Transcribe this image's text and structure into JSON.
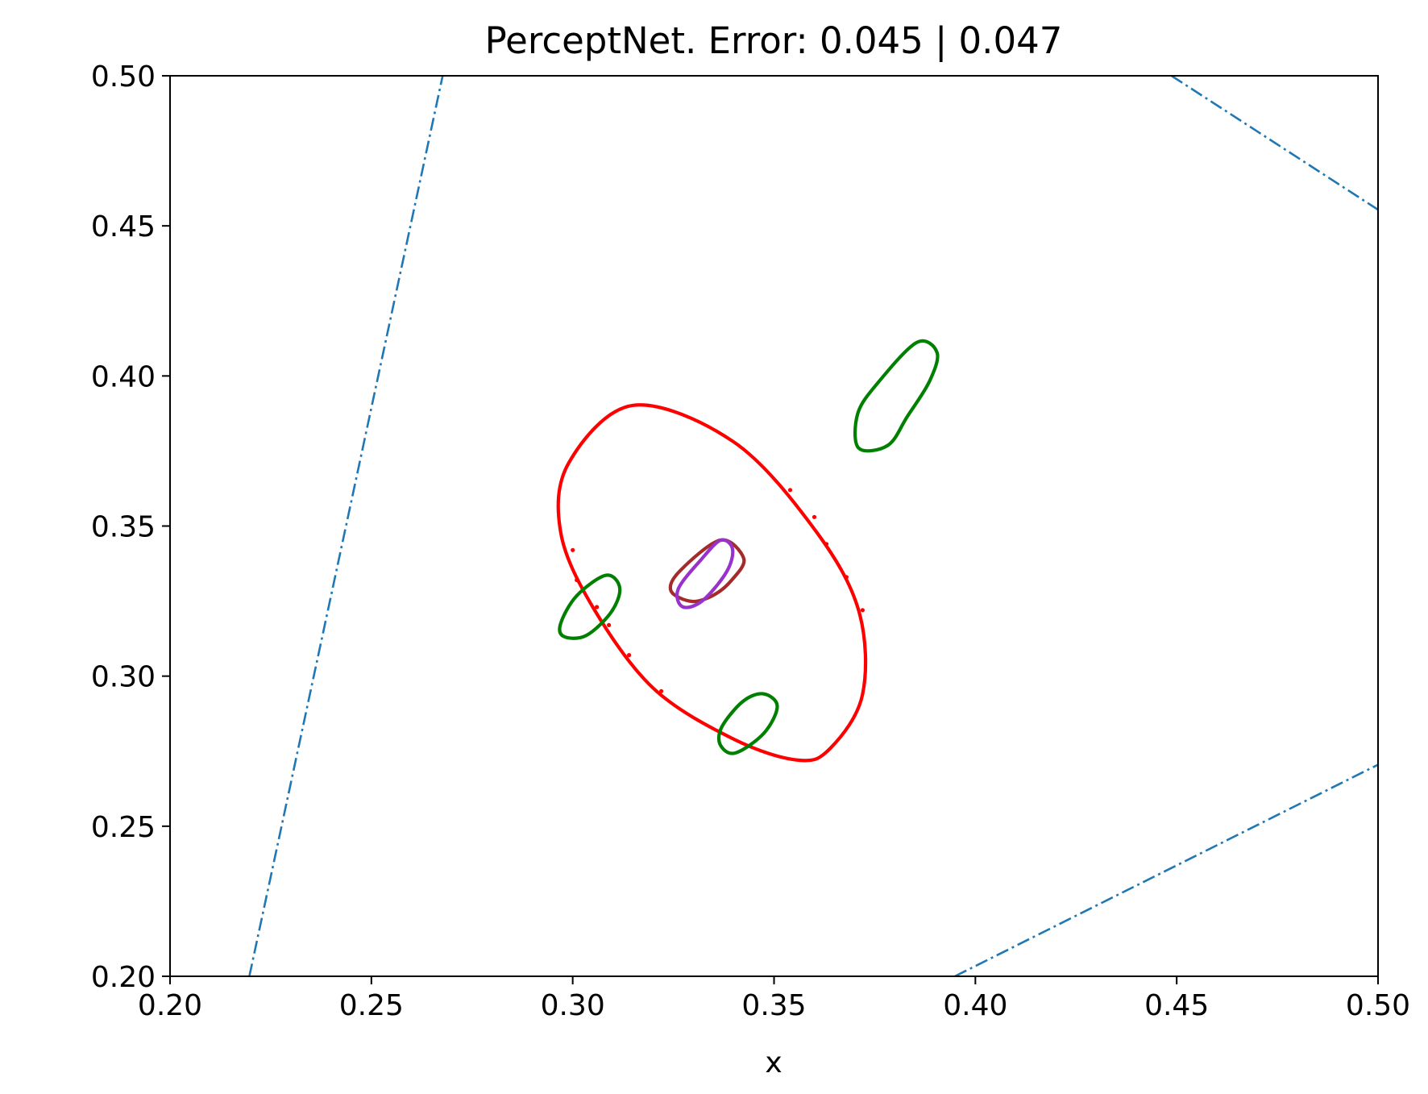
{
  "chart_data": {
    "type": "line",
    "title": "PerceptNet. Error: 0.045 | 0.047",
    "xlabel": "x",
    "ylabel": "",
    "xlim": [
      0.2,
      0.5
    ],
    "ylim": [
      0.2,
      0.5
    ],
    "xticks": [
      "0.20",
      "0.25",
      "0.30",
      "0.35",
      "0.40",
      "0.45",
      "0.50"
    ],
    "yticks": [
      "0.20",
      "0.25",
      "0.30",
      "0.35",
      "0.40",
      "0.45",
      "0.50"
    ],
    "grid": false,
    "legend": "none",
    "lines": [
      {
        "color": "#1f77b4",
        "style": "dashdot",
        "points": [
          [
            0.2197,
            0.2
          ],
          [
            0.2677,
            0.5
          ]
        ]
      },
      {
        "color": "#1f77b4",
        "style": "dashdot",
        "points": [
          [
            0.4487,
            0.5
          ],
          [
            0.5,
            0.4554
          ]
        ]
      },
      {
        "color": "#1f77b4",
        "style": "dashdot",
        "points": [
          [
            0.3949,
            0.2
          ],
          [
            0.5,
            0.2705
          ]
        ]
      }
    ],
    "ellipses": [
      {
        "color": "#ff0000",
        "points": [
          [
            0.315,
            0.3902
          ],
          [
            0.34,
            0.378
          ],
          [
            0.36,
            0.349
          ],
          [
            0.371,
            0.322
          ],
          [
            0.372,
            0.294
          ],
          [
            0.364,
            0.276
          ],
          [
            0.356,
            0.272
          ],
          [
            0.34,
            0.279
          ],
          [
            0.32,
            0.296
          ],
          [
            0.305,
            0.323
          ],
          [
            0.297,
            0.348
          ],
          [
            0.299,
            0.371
          ],
          [
            0.315,
            0.3902
          ]
        ]
      },
      {
        "color": "#008000",
        "points": [
          [
            0.3855,
            0.4112
          ],
          [
            0.3905,
            0.4077
          ],
          [
            0.3886,
            0.3982
          ],
          [
            0.3831,
            0.3865
          ],
          [
            0.3783,
            0.3769
          ],
          [
            0.371,
            0.376
          ],
          [
            0.3708,
            0.3875
          ],
          [
            0.3759,
            0.3979
          ],
          [
            0.3855,
            0.4112
          ]
        ]
      },
      {
        "color": "#008000",
        "points": [
          [
            0.3083,
            0.3336
          ],
          [
            0.3117,
            0.3293
          ],
          [
            0.3095,
            0.3212
          ],
          [
            0.3033,
            0.3135
          ],
          [
            0.2978,
            0.3132
          ],
          [
            0.297,
            0.3175
          ],
          [
            0.301,
            0.3268
          ],
          [
            0.3083,
            0.3336
          ]
        ]
      },
      {
        "color": "#008000",
        "points": [
          [
            0.3473,
            0.2941
          ],
          [
            0.3508,
            0.29
          ],
          [
            0.3475,
            0.281
          ],
          [
            0.3404,
            0.2744
          ],
          [
            0.3367,
            0.277
          ],
          [
            0.337,
            0.283
          ],
          [
            0.3422,
            0.2915
          ],
          [
            0.3473,
            0.2941
          ]
        ]
      },
      {
        "color": "#a52a2a",
        "points": [
          [
            0.3367,
            0.3453
          ],
          [
            0.3425,
            0.3391
          ],
          [
            0.3395,
            0.332
          ],
          [
            0.335,
            0.327
          ],
          [
            0.3296,
            0.3249
          ],
          [
            0.3244,
            0.3284
          ],
          [
            0.3266,
            0.335
          ],
          [
            0.3367,
            0.3453
          ]
        ]
      },
      {
        "color": "#9932cc",
        "points": [
          [
            0.3368,
            0.3453
          ],
          [
            0.3397,
            0.3423
          ],
          [
            0.3382,
            0.3347
          ],
          [
            0.3322,
            0.3251
          ],
          [
            0.3273,
            0.3231
          ],
          [
            0.3262,
            0.329
          ],
          [
            0.332,
            0.339
          ],
          [
            0.3368,
            0.3453
          ]
        ]
      }
    ],
    "markers": {
      "color": "#ff0000",
      "points": [
        [
          0.354,
          0.362
        ],
        [
          0.36,
          0.353
        ],
        [
          0.363,
          0.344
        ],
        [
          0.368,
          0.333
        ],
        [
          0.372,
          0.322
        ],
        [
          0.3,
          0.342
        ],
        [
          0.301,
          0.332
        ],
        [
          0.306,
          0.323
        ],
        [
          0.309,
          0.317
        ],
        [
          0.314,
          0.307
        ],
        [
          0.322,
          0.295
        ]
      ]
    }
  }
}
